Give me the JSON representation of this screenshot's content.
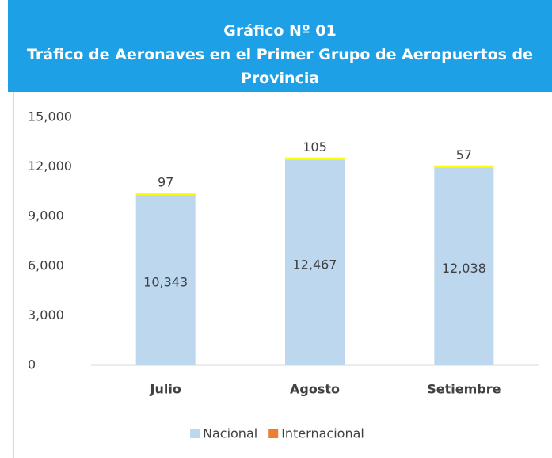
{
  "chart_data": {
    "type": "stacked_bar",
    "title": "Gráfico Nº 01",
    "subtitle": "Tráfico de Aeronaves en el Primer Grupo de Aeropuertos de Provincia",
    "categories": [
      "Julio",
      "Agosto",
      "Setiembre"
    ],
    "series": [
      {
        "name": "Nacional",
        "color": "#bdd7ee",
        "values": [
          10343,
          12467,
          12038
        ],
        "value_labels": [
          "10,343",
          "12,467",
          "12,038"
        ]
      },
      {
        "name": "Internacional",
        "color": "#ffff00",
        "legend_color": "#ed7d31",
        "values": [
          97,
          105,
          57
        ]
      }
    ],
    "ylim": [
      0,
      15000
    ],
    "yticks": [
      0,
      {
        "value": 3000,
        "label": "3,000"
      },
      {
        "value": 6000,
        "label": "6,000"
      },
      {
        "value": 9000,
        "label": "9,000"
      },
      {
        "value": 12000,
        "label": "12,000"
      },
      {
        "value": 15000,
        "label": "15,000"
      }
    ],
    "grid": false
  }
}
